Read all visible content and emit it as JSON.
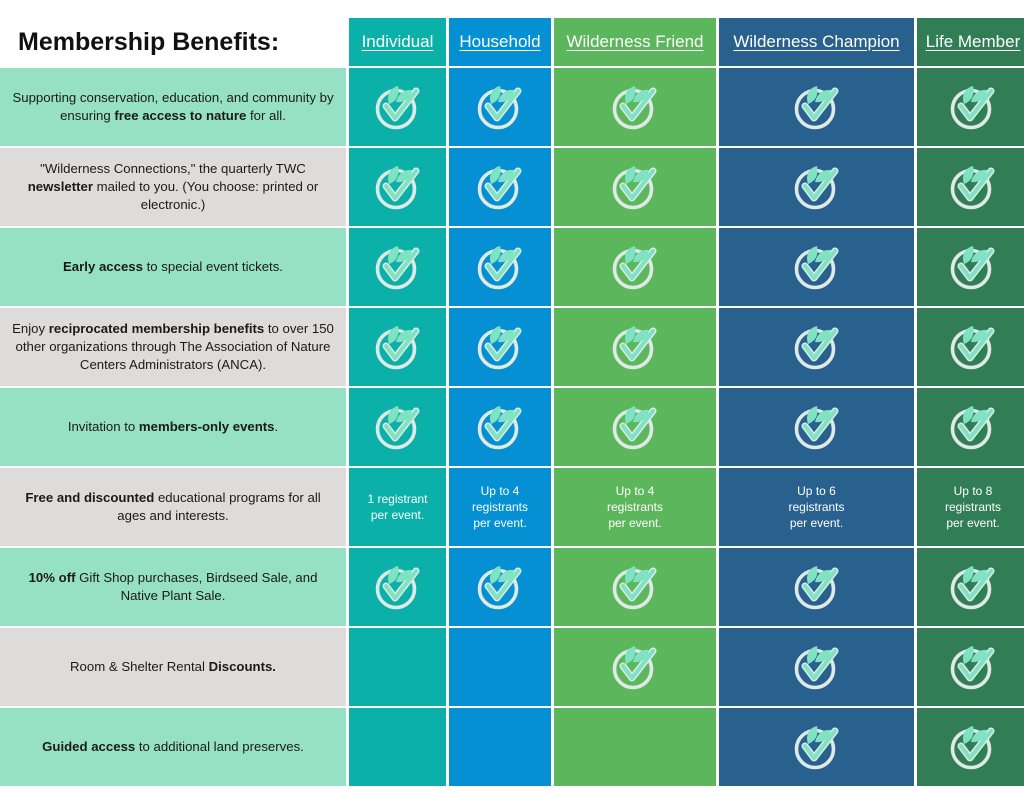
{
  "title": "Membership Benefits:",
  "tiers": [
    {
      "label": "Individual",
      "color": "#0bb1a8"
    },
    {
      "label": "Household",
      "color": "#0590d4"
    },
    {
      "label": "Wilderness Friend",
      "color": "#5cb65c"
    },
    {
      "label": "Wilderness Champion",
      "color": "#28608e"
    },
    {
      "label": "Life Member",
      "color": "#317d55"
    }
  ],
  "row_colors": {
    "light_green": "#96e0c6",
    "light_grey": "#dedcdb"
  },
  "icon": "leaf-check-icon",
  "benefits": [
    {
      "parts": [
        {
          "t": "Supporting conservation, education, and community by ensuring ",
          "b": false
        },
        {
          "t": "free access to nature",
          "b": true
        },
        {
          "t": " for all.",
          "b": false
        }
      ],
      "cells": [
        "check",
        "check",
        "check",
        "check",
        "check"
      ]
    },
    {
      "parts": [
        {
          "t": "\"Wilderness Connections,\" the quarterly TWC ",
          "b": false
        },
        {
          "t": "newsletter",
          "b": true
        },
        {
          "t": " mailed to you. (You choose: printed or electronic.)",
          "b": false
        }
      ],
      "cells": [
        "check",
        "check",
        "check",
        "check",
        "check"
      ]
    },
    {
      "parts": [
        {
          "t": "Early access",
          "b": true
        },
        {
          "t": "  to special event tickets.",
          "b": false
        }
      ],
      "cells": [
        "check",
        "check",
        "check",
        "check",
        "check"
      ]
    },
    {
      "parts": [
        {
          "t": "Enjoy ",
          "b": false
        },
        {
          "t": "reciprocated membership benefits",
          "b": true
        },
        {
          "t": " to over 150 other organizations through The Association of Nature Centers Administrators (ANCA).",
          "b": false
        }
      ],
      "cells": [
        "check",
        "check",
        "check",
        "check",
        "check"
      ]
    },
    {
      "parts": [
        {
          "t": "Invitation to ",
          "b": false
        },
        {
          "t": "members-only events",
          "b": true
        },
        {
          "t": ".",
          "b": false
        }
      ],
      "cells": [
        "check",
        "check",
        "check",
        "check",
        "check"
      ]
    },
    {
      "parts": [
        {
          "t": "Free and discounted",
          "b": true
        },
        {
          "t": " educational programs for all ages and interests.",
          "b": false
        }
      ],
      "cells": [
        "1 registrant\nper event.",
        "Up to 4\nregistrants\nper event.",
        "Up to 4\nregistrants\nper event.",
        "Up to 6\nregistrants\nper event.",
        "Up to 8\nregistrants\nper event."
      ]
    },
    {
      "parts": [
        {
          "t": "10% off",
          "b": true
        },
        {
          "t": " Gift Shop purchases, Birdseed Sale, and Native Plant Sale.",
          "b": false
        }
      ],
      "cells": [
        "check",
        "check",
        "check",
        "check",
        "check"
      ]
    },
    {
      "parts": [
        {
          "t": "Room & Shelter Rental ",
          "b": false
        },
        {
          "t": "Discounts.",
          "b": true
        }
      ],
      "cells": [
        "",
        "",
        "check",
        "check",
        "check"
      ]
    },
    {
      "parts": [
        {
          "t": "Guided access",
          "b": true
        },
        {
          "t": " to additional land preserves.",
          "b": false
        }
      ],
      "cells": [
        "",
        "",
        "",
        "check",
        "check"
      ]
    }
  ]
}
